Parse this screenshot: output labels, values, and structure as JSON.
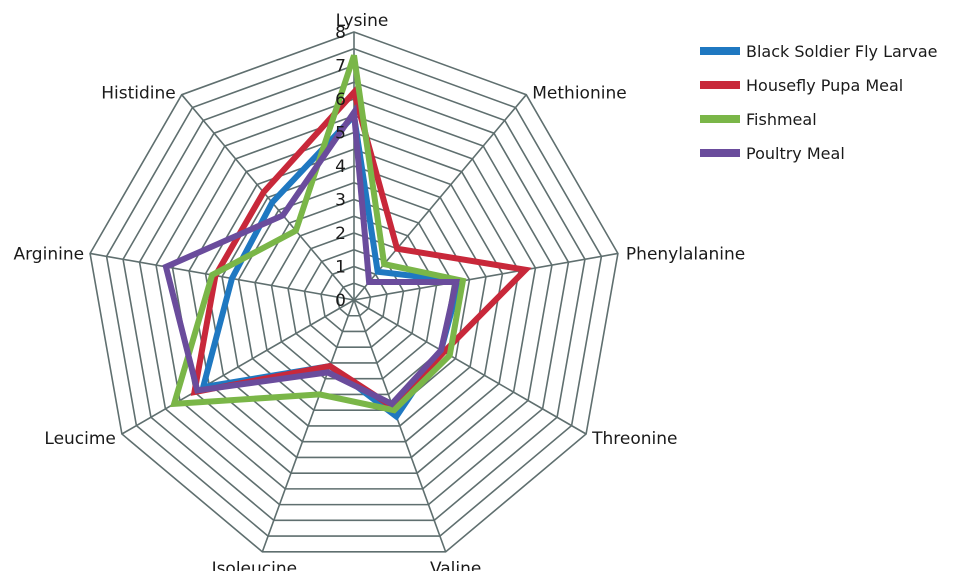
{
  "chart_data": {
    "type": "radar",
    "title": "",
    "axes": [
      "Lysine",
      "Methionine",
      "Phenylalanine",
      "Threonine",
      "Valine",
      "Isoleucine",
      "Leucime",
      "Arginine",
      "Histidine"
    ],
    "r_ticks": [
      "0",
      "1",
      "2",
      "3",
      "4",
      "5",
      "6",
      "7",
      "8"
    ],
    "rlim": [
      0,
      8
    ],
    "grid": true,
    "legend_position": "top-right",
    "series": [
      {
        "name": "Black Soldier Fly Larvae",
        "color": "#1f78c1",
        "values": [
          5.5,
          1.1,
          3.2,
          3.0,
          3.7,
          2.1,
          5.2,
          3.7,
          3.8
        ]
      },
      {
        "name": "Housefly Pupa Meal",
        "color": "#c8283a",
        "values": [
          6.2,
          2.0,
          5.2,
          3.1,
          3.4,
          2.1,
          5.5,
          4.2,
          4.2
        ]
      },
      {
        "name": "Fishmeal",
        "color": "#7ab648",
        "values": [
          7.3,
          1.4,
          3.3,
          3.3,
          3.5,
          3.0,
          6.2,
          4.3,
          2.7
        ]
      },
      {
        "name": "Poultry Meal",
        "color": "#6a4c9c",
        "values": [
          5.6,
          0.7,
          3.1,
          3.0,
          3.3,
          2.3,
          5.4,
          5.7,
          3.3
        ]
      }
    ]
  }
}
